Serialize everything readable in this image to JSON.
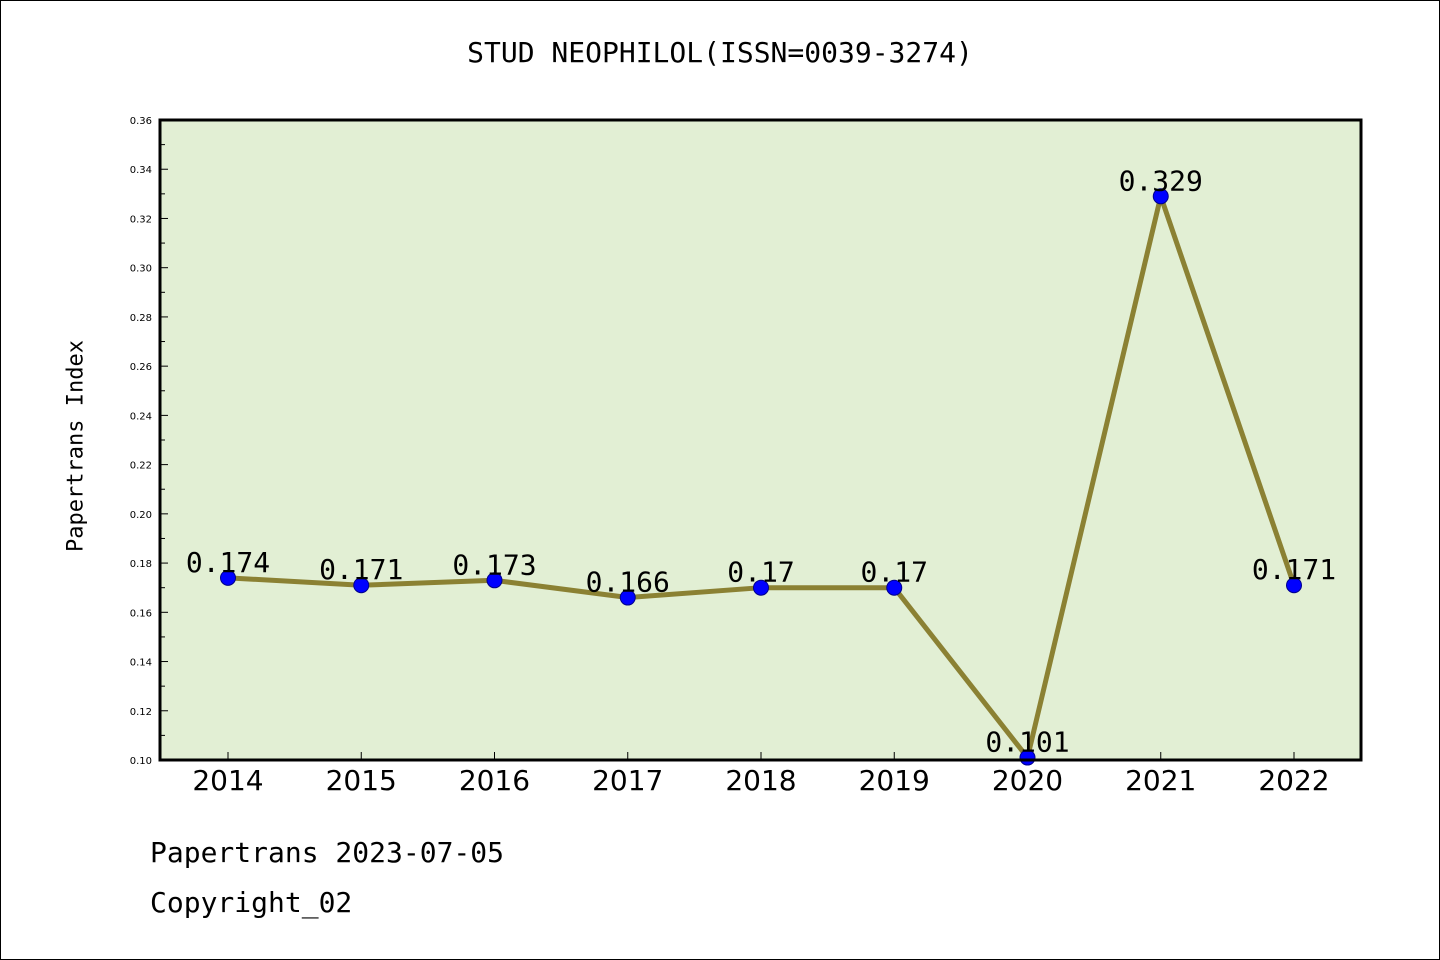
{
  "page": {
    "title": "STUD NEOPHILOL(ISSN=0039-3274)",
    "footer_date": "Papertrans 2023-07-05",
    "footer_copyright": "Copyright_02"
  },
  "chart_data": {
    "type": "line",
    "title": "STUD NEOPHILOL(ISSN=0039-3274)",
    "xlabel": "",
    "ylabel": "Papertrans Index",
    "categories": [
      "2014",
      "2015",
      "2016",
      "2017",
      "2018",
      "2019",
      "2020",
      "2021",
      "2022"
    ],
    "series": [
      {
        "values": [
          0.174,
          0.171,
          0.173,
          0.166,
          0.17,
          0.17,
          0.101,
          0.329,
          0.171
        ],
        "labels": [
          "0.174",
          "0.171",
          "0.173",
          "0.166",
          "0.17",
          "0.17",
          "0.101",
          "0.329",
          "0.171"
        ]
      }
    ],
    "ylim": [
      0.1,
      0.36
    ],
    "yticks": [
      "0.10",
      "0.12",
      "0.14",
      "0.16",
      "0.18",
      "0.20",
      "0.22",
      "0.24",
      "0.26",
      "0.28",
      "0.30",
      "0.32",
      "0.34",
      "0.36"
    ],
    "grid": false,
    "colors": {
      "plot_background": "#e2efd4",
      "line": "#8b8133",
      "marker_fill": "#0000ff",
      "marker_edge": "#00008b"
    }
  }
}
